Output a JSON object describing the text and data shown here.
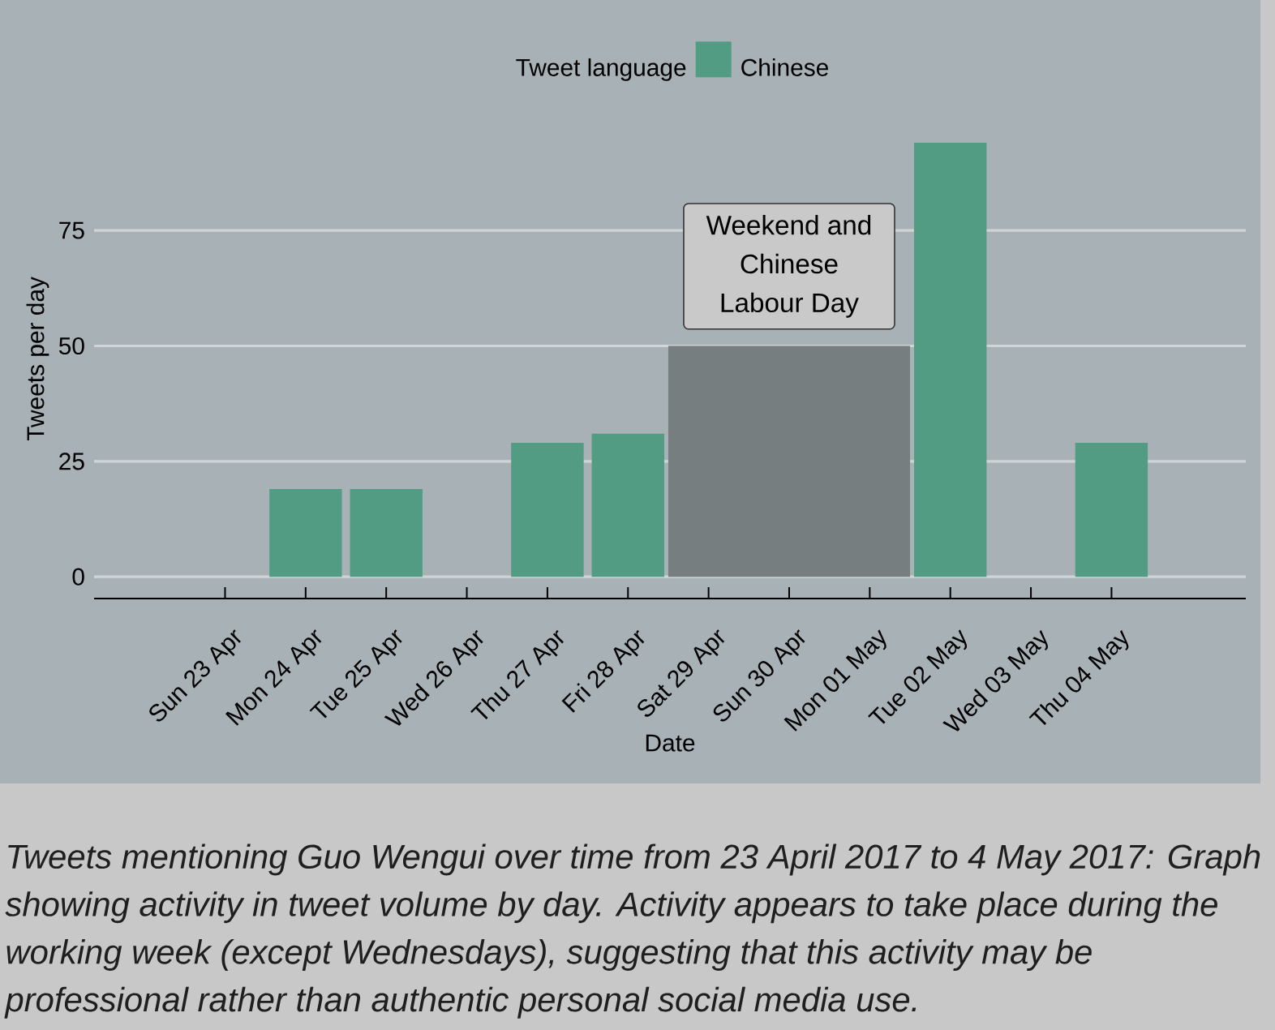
{
  "chart_data": {
    "type": "bar",
    "xlabel": "Date",
    "ylabel": "Tweets per day",
    "legend_title": "Tweet language",
    "legend": "top",
    "grid": "y",
    "series": [
      {
        "name": "Chinese",
        "color": "#529c83",
        "x": [
          "2017-04-24",
          "2017-04-25",
          "2017-04-27",
          "2017-04-28",
          "2017-05-02",
          "2017-05-04"
        ],
        "values": [
          19,
          19,
          29,
          31,
          94,
          29
        ]
      },
      {
        "type": "area",
        "color": "#767e80",
        "x": [
          "2017-04-28T12:00",
          "2017-05-01T12:00"
        ],
        "values": [
          50,
          50
        ]
      }
    ],
    "xlim": [
      "2017-04-21T09:00",
      "2017-05-05T16:00"
    ],
    "xticks": [
      {
        "value": "2017-04-23",
        "label": "Sun 23 Apr"
      },
      {
        "value": "2017-04-24",
        "label": "Mon 24 Apr"
      },
      {
        "value": "2017-04-25",
        "label": "Tue 25 Apr"
      },
      {
        "value": "2017-04-26",
        "label": "Wed 26 Apr"
      },
      {
        "value": "2017-04-27",
        "label": "Thu 27 Apr"
      },
      {
        "value": "2017-04-28",
        "label": "Fri 28 Apr"
      },
      {
        "value": "2017-04-29",
        "label": "Sat 29 Apr"
      },
      {
        "value": "2017-04-30",
        "label": "Sun 30 Apr"
      },
      {
        "value": "2017-05-01",
        "label": "Mon 01 May"
      },
      {
        "value": "2017-05-02",
        "label": "Tue 02 May"
      },
      {
        "value": "2017-05-03",
        "label": "Wed 03 May"
      },
      {
        "value": "2017-05-04",
        "label": "Thu 04 May"
      }
    ],
    "ylim": [
      -4.7,
      94
    ],
    "yticks": [
      0,
      25,
      50,
      75
    ],
    "annotations": [
      {
        "text": "Weekend and Chinese Labour Day",
        "x": "2017-04-30",
        "y": 50
      },
      "Tweets mentioning Guo Wengui over time from 23 April 2017 to 4 May 2017: Graph showing activity in tweet volume by day. Activity appears to take place during the working week (except Wednesdays), suggesting that this activity may be professional rather than authentic personal social media use."
    ]
  }
}
